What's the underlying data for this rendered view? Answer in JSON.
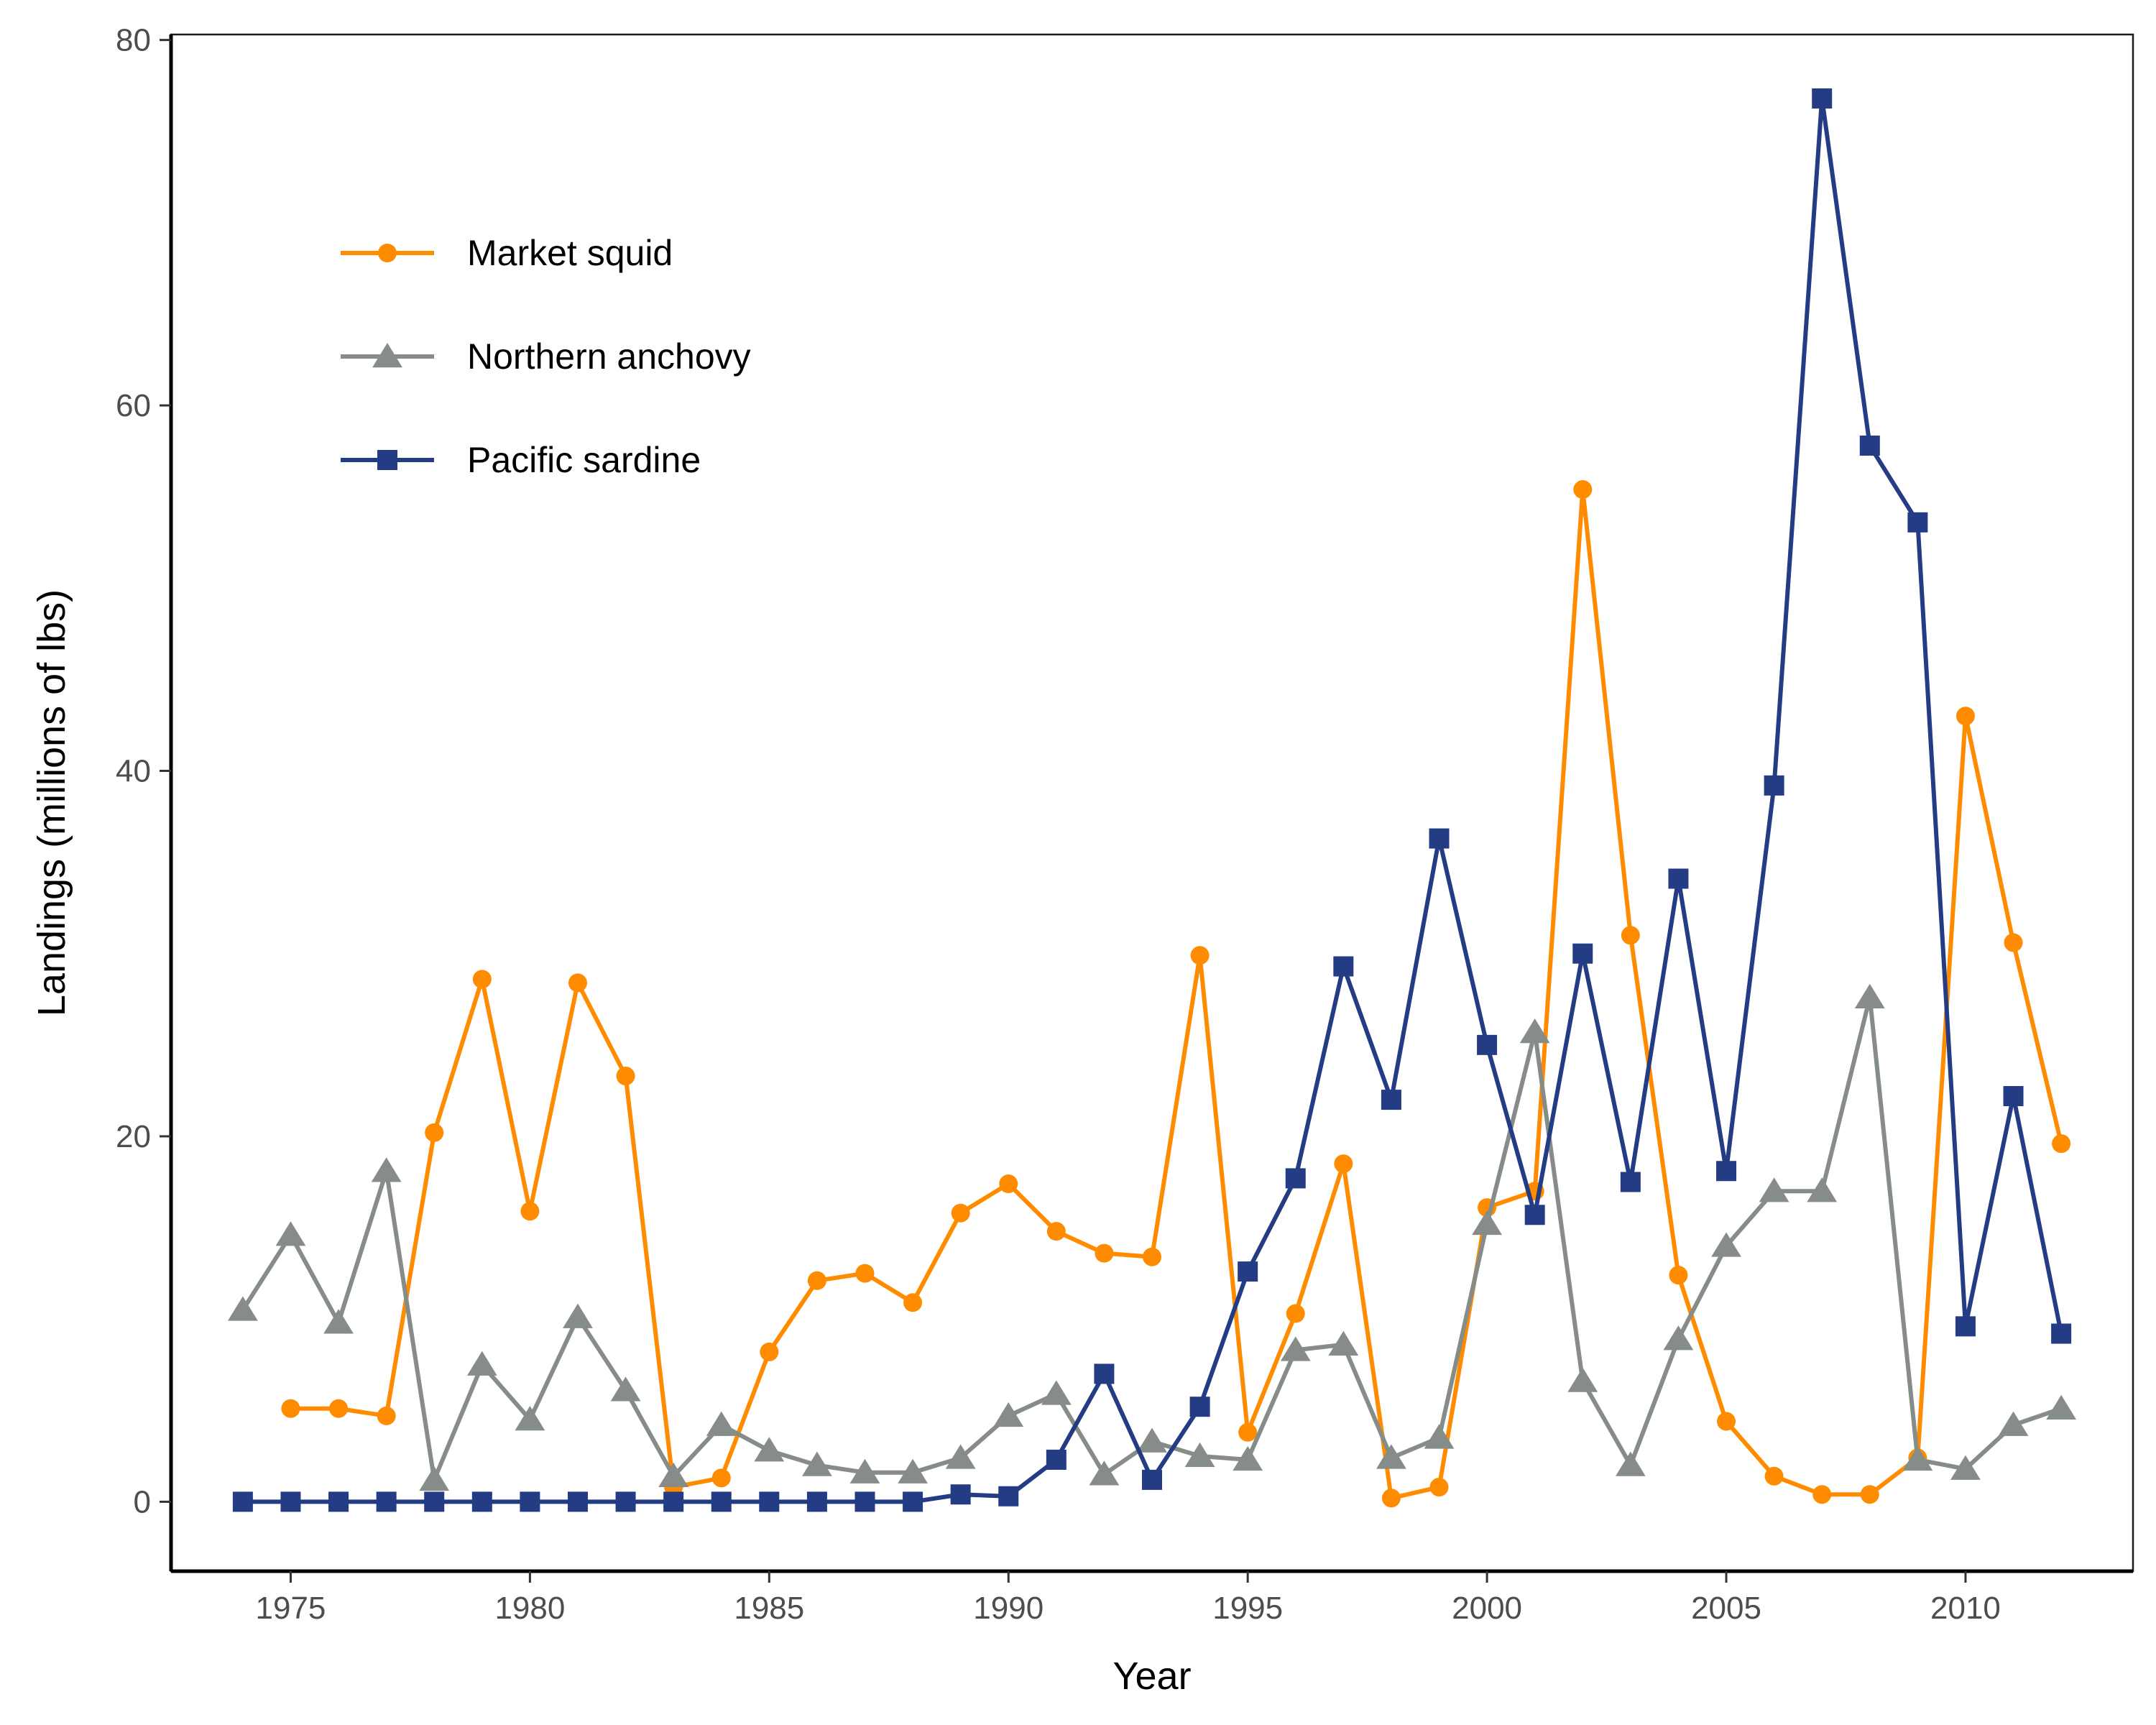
{
  "chart_data": {
    "type": "line",
    "title": "",
    "xlabel": "Year",
    "ylabel": "Landings (millions of lbs)",
    "xlim": [
      1972.5,
      2013.5
    ],
    "ylim": [
      -3.8,
      80.3
    ],
    "x_ticks": [
      1975,
      1980,
      1985,
      1990,
      1995,
      2000,
      2005,
      2010
    ],
    "y_ticks": [
      0,
      20,
      40,
      60,
      80
    ],
    "grid": false,
    "legend_position": "top-left",
    "x": [
      1974,
      1975,
      1976,
      1977,
      1978,
      1979,
      1980,
      1981,
      1982,
      1983,
      1984,
      1985,
      1986,
      1987,
      1988,
      1989,
      1990,
      1991,
      1992,
      1993,
      1994,
      1995,
      1996,
      1997,
      1998,
      1999,
      2000,
      2001,
      2002,
      2003,
      2004,
      2005,
      2006,
      2007,
      2008,
      2009,
      2010,
      2011,
      2012
    ],
    "series": [
      {
        "name": "Market squid",
        "color": "#FF8C00",
        "marker": "circle",
        "values": [
          null,
          5.1,
          5.1,
          4.7,
          20.2,
          28.6,
          15.9,
          28.4,
          23.3,
          0.8,
          1.3,
          8.2,
          12.1,
          12.5,
          10.9,
          15.8,
          17.4,
          14.8,
          13.6,
          13.4,
          29.9,
          3.8,
          10.3,
          18.5,
          0.2,
          0.8,
          16.1,
          17.0,
          55.4,
          31.0,
          12.4,
          4.4,
          1.4,
          0.4,
          0.4,
          2.4,
          43.0,
          30.6,
          19.6
        ]
      },
      {
        "name": "Northern anchovy",
        "color": "#868C87",
        "marker": "triangle",
        "values": [
          10.5,
          14.6,
          9.8,
          18.1,
          1.2,
          7.5,
          4.5,
          10.1,
          6.1,
          1.4,
          4.2,
          2.8,
          2.0,
          1.6,
          1.6,
          2.4,
          4.7,
          5.9,
          1.5,
          3.3,
          2.5,
          2.3,
          8.3,
          8.6,
          2.4,
          3.5,
          15.2,
          25.7,
          6.6,
          2.0,
          8.9,
          14.0,
          17.0,
          17.0,
          27.6,
          2.3,
          1.8,
          4.2,
          5.1
        ]
      },
      {
        "name": "Pacific sardine",
        "color": "#233C84",
        "marker": "square",
        "values": [
          0,
          0,
          0,
          0,
          0,
          0,
          0,
          0,
          0,
          0,
          0,
          0,
          0,
          0,
          0,
          0.4,
          0.3,
          2.3,
          7.0,
          1.2,
          5.2,
          12.6,
          17.7,
          29.3,
          22.0,
          36.3,
          25.0,
          15.7,
          30.0,
          17.5,
          34.1,
          18.1,
          39.2,
          76.8,
          57.8,
          53.6,
          9.6,
          22.2,
          9.2
        ]
      }
    ]
  }
}
